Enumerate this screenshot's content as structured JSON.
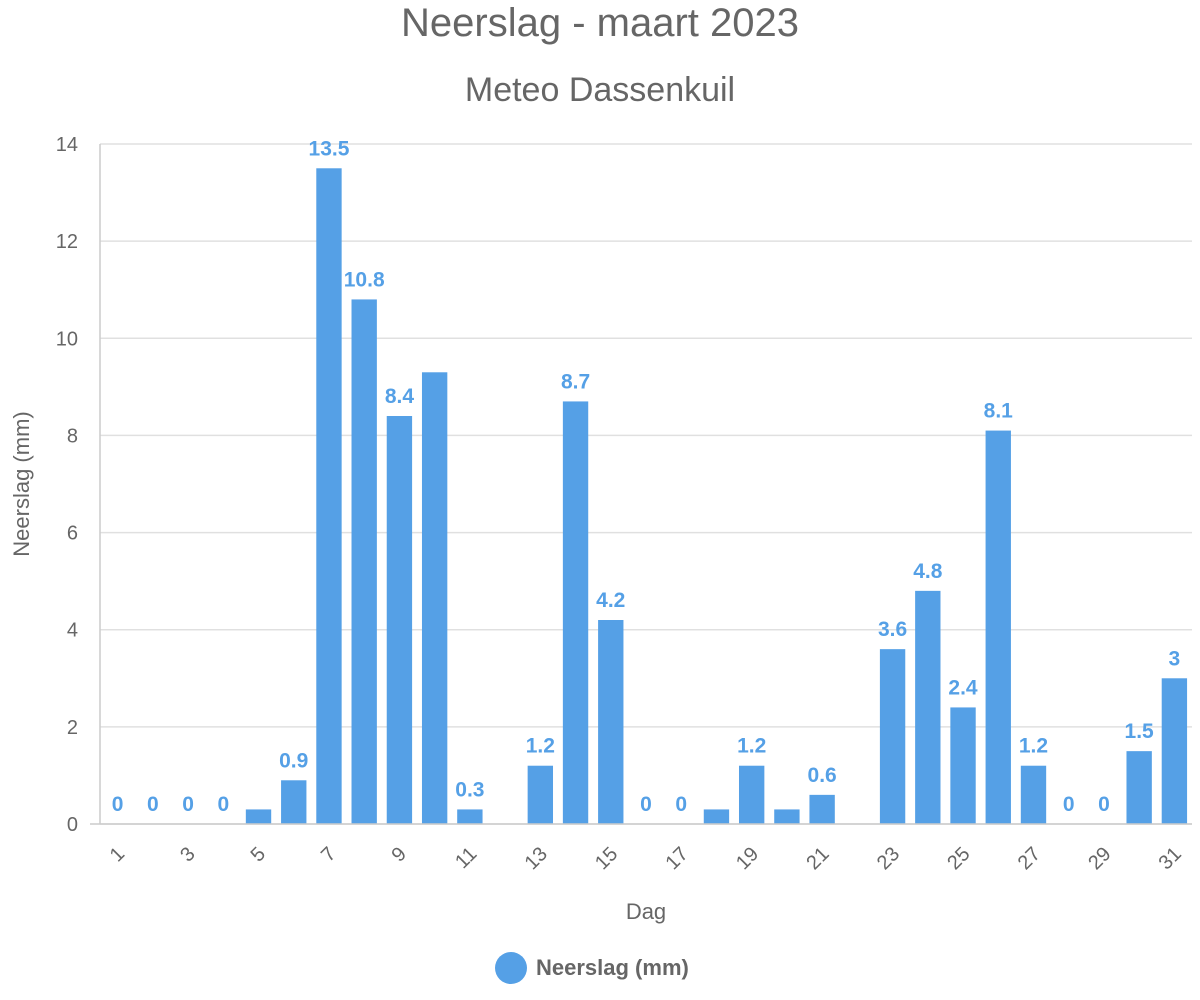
{
  "chart_data": {
    "type": "bar",
    "title": "Neerslag - maart 2023",
    "subtitle": "Meteo Dassenkuil",
    "xlabel": "Dag",
    "ylabel": "Neerslag (mm)",
    "ylim": [
      0,
      14
    ],
    "yticks": [
      0,
      2,
      4,
      6,
      8,
      10,
      12,
      14
    ],
    "x": [
      1,
      2,
      3,
      4,
      5,
      6,
      7,
      8,
      9,
      10,
      11,
      12,
      13,
      14,
      15,
      16,
      17,
      18,
      19,
      20,
      21,
      22,
      23,
      24,
      25,
      26,
      27,
      28,
      29,
      30,
      31
    ],
    "xticks_shown": [
      1,
      3,
      5,
      7,
      9,
      11,
      13,
      15,
      17,
      19,
      21,
      23,
      25,
      27,
      29,
      31
    ],
    "grid": true,
    "legend_position": "bottom",
    "series": [
      {
        "name": "Neerslag (mm)",
        "color": "#55a0e6",
        "values": [
          0,
          0,
          0,
          0,
          0.3,
          0.9,
          13.5,
          10.8,
          8.4,
          9.3,
          0.3,
          0,
          1.2,
          8.7,
          4.2,
          0,
          0,
          0.3,
          1.2,
          0.3,
          0.6,
          0,
          3.6,
          4.8,
          2.4,
          8.1,
          1.2,
          0,
          0,
          1.5,
          3
        ],
        "labeled_days": [
          1,
          2,
          3,
          4,
          6,
          7,
          8,
          9,
          11,
          13,
          14,
          15,
          16,
          17,
          19,
          21,
          23,
          24,
          25,
          26,
          27,
          28,
          29,
          30,
          31
        ]
      }
    ]
  }
}
